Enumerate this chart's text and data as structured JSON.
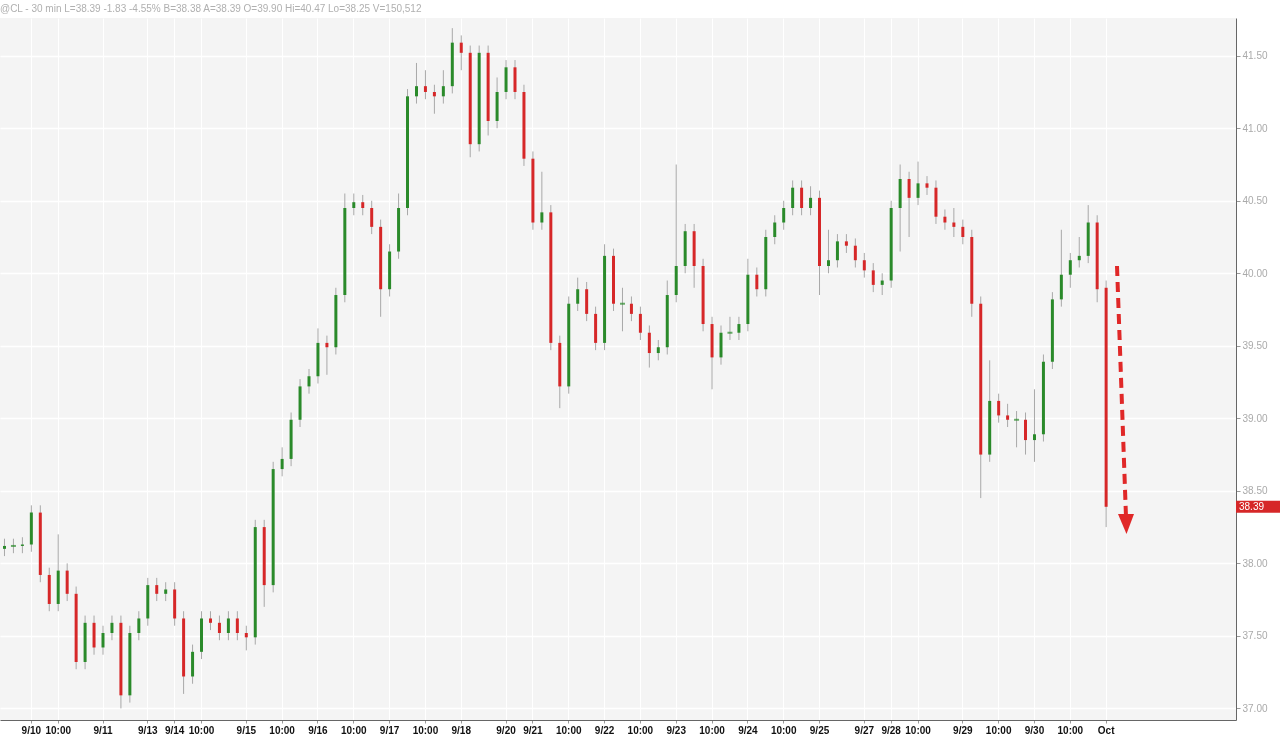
{
  "chart_data": {
    "type": "candlestick",
    "title": "@CL - 30 min  L=38.39  -1.83  -4.55%  B=38.38  A=38.39  O=39.90  Hi=40.47  Lo=38.25  V=150,512",
    "categories": [
      null,
      null,
      null,
      "9/10",
      null,
      null,
      "10:00",
      null,
      null,
      null,
      null,
      "9/11",
      null,
      null,
      null,
      null,
      "9/13",
      null,
      null,
      "9/14",
      null,
      null,
      "10:00",
      null,
      null,
      null,
      null,
      "9/15",
      null,
      null,
      null,
      "10:00",
      null,
      null,
      null,
      "9/16",
      null,
      null,
      null,
      "10:00",
      null,
      null,
      null,
      "9/17",
      null,
      null,
      null,
      "10:00",
      null,
      null,
      null,
      "9/18",
      null,
      null,
      null,
      null,
      "9/20",
      null,
      null,
      "9/21",
      null,
      null,
      null,
      "10:00",
      null,
      null,
      null,
      "9/22",
      null,
      null,
      null,
      "10:00",
      null,
      null,
      null,
      "9/23",
      null,
      null,
      null,
      "10:00",
      null,
      null,
      null,
      "9/24",
      null,
      null,
      null,
      "10:00",
      null,
      null,
      null,
      "9/25",
      null,
      null,
      null,
      null,
      "9/27",
      null,
      null,
      "9/28",
      null,
      null,
      "10:00",
      null,
      null,
      null,
      null,
      "9/29",
      null,
      null,
      null,
      "10:00",
      null,
      null,
      null,
      "9/30",
      null,
      null,
      null,
      "10:00",
      null,
      null,
      null,
      "Oct",
      null,
      null,
      null,
      null,
      null,
      null,
      null,
      null,
      null,
      null,
      null,
      null,
      null,
      null
    ],
    "ohlc": [
      [
        38.1,
        38.17,
        38.05,
        38.12
      ],
      [
        38.12,
        38.17,
        38.07,
        38.12
      ],
      [
        38.12,
        38.18,
        38.07,
        38.13
      ],
      [
        38.13,
        38.4,
        38.08,
        38.35
      ],
      [
        38.35,
        38.4,
        37.87,
        37.92
      ],
      [
        37.92,
        37.97,
        37.67,
        37.72
      ],
      [
        37.72,
        38.2,
        37.67,
        37.95
      ],
      [
        37.95,
        38.0,
        37.74,
        37.79
      ],
      [
        37.79,
        37.84,
        37.27,
        37.32
      ],
      [
        37.32,
        37.64,
        37.27,
        37.59
      ],
      [
        37.59,
        37.64,
        37.37,
        37.42
      ],
      [
        37.42,
        37.57,
        37.37,
        37.52
      ],
      [
        37.52,
        37.64,
        37.47,
        37.59
      ],
      [
        37.59,
        37.64,
        37.0,
        37.09
      ],
      [
        37.09,
        37.57,
        37.04,
        37.52
      ],
      [
        37.52,
        37.67,
        37.47,
        37.62
      ],
      [
        37.62,
        37.9,
        37.57,
        37.85
      ],
      [
        37.85,
        37.9,
        37.74,
        37.79
      ],
      [
        37.79,
        37.87,
        37.74,
        37.82
      ],
      [
        37.82,
        37.87,
        37.57,
        37.62
      ],
      [
        37.62,
        37.67,
        37.1,
        37.22
      ],
      [
        37.22,
        37.44,
        37.17,
        37.39
      ],
      [
        37.39,
        37.67,
        37.34,
        37.62
      ],
      [
        37.62,
        37.67,
        37.54,
        37.59
      ],
      [
        37.59,
        37.64,
        37.47,
        37.52
      ],
      [
        37.52,
        37.67,
        37.47,
        37.62
      ],
      [
        37.62,
        37.67,
        37.47,
        37.52
      ],
      [
        37.52,
        37.57,
        37.4,
        37.49
      ],
      [
        37.49,
        38.3,
        37.44,
        38.25
      ],
      [
        38.25,
        38.3,
        37.7,
        37.85
      ],
      [
        37.85,
        38.7,
        37.8,
        38.65
      ],
      [
        38.65,
        38.8,
        38.6,
        38.72
      ],
      [
        38.72,
        39.04,
        38.67,
        38.99
      ],
      [
        38.99,
        39.27,
        38.94,
        39.22
      ],
      [
        39.22,
        39.34,
        39.17,
        39.29
      ],
      [
        39.29,
        39.62,
        39.24,
        39.52
      ],
      [
        39.52,
        39.57,
        39.3,
        39.49
      ],
      [
        39.49,
        39.9,
        39.44,
        39.85
      ],
      [
        39.85,
        40.55,
        39.8,
        40.45
      ],
      [
        40.45,
        40.55,
        40.4,
        40.49
      ],
      [
        40.49,
        40.54,
        40.4,
        40.45
      ],
      [
        40.45,
        40.5,
        40.27,
        40.32
      ],
      [
        40.32,
        40.37,
        39.7,
        39.89
      ],
      [
        39.89,
        40.2,
        39.84,
        40.15
      ],
      [
        40.15,
        40.55,
        40.1,
        40.45
      ],
      [
        40.45,
        41.27,
        40.4,
        41.22
      ],
      [
        41.22,
        41.45,
        41.17,
        41.29
      ],
      [
        41.29,
        41.4,
        41.2,
        41.25
      ],
      [
        41.25,
        41.3,
        41.1,
        41.22
      ],
      [
        41.22,
        41.4,
        41.17,
        41.29
      ],
      [
        41.29,
        41.69,
        41.24,
        41.59
      ],
      [
        41.59,
        41.64,
        41.4,
        41.52
      ],
      [
        41.52,
        41.57,
        40.8,
        40.89
      ],
      [
        40.89,
        41.57,
        40.84,
        41.52
      ],
      [
        41.52,
        41.57,
        40.95,
        41.05
      ],
      [
        41.05,
        41.35,
        41.0,
        41.25
      ],
      [
        41.25,
        41.47,
        41.2,
        41.42
      ],
      [
        41.42,
        41.47,
        41.2,
        41.25
      ],
      [
        41.25,
        41.3,
        40.74,
        40.79
      ],
      [
        40.79,
        40.84,
        40.3,
        40.35
      ],
      [
        40.35,
        40.7,
        40.3,
        40.42
      ],
      [
        40.42,
        40.47,
        39.47,
        39.52
      ],
      [
        39.52,
        39.57,
        39.07,
        39.22
      ],
      [
        39.22,
        39.84,
        39.17,
        39.79
      ],
      [
        39.79,
        39.97,
        39.74,
        39.89
      ],
      [
        39.89,
        39.94,
        39.67,
        39.72
      ],
      [
        39.72,
        39.77,
        39.47,
        39.52
      ],
      [
        39.52,
        40.2,
        39.47,
        40.12
      ],
      [
        40.12,
        40.17,
        39.74,
        39.79
      ],
      [
        39.79,
        39.9,
        39.6,
        39.79
      ],
      [
        39.79,
        39.84,
        39.67,
        39.72
      ],
      [
        39.72,
        39.77,
        39.54,
        39.59
      ],
      [
        39.59,
        39.64,
        39.35,
        39.45
      ],
      [
        39.45,
        39.54,
        39.4,
        39.49
      ],
      [
        39.49,
        39.95,
        39.44,
        39.85
      ],
      [
        39.85,
        40.75,
        39.8,
        40.05
      ],
      [
        40.05,
        40.34,
        40.0,
        40.29
      ],
      [
        40.29,
        40.34,
        39.9,
        40.05
      ],
      [
        40.05,
        40.1,
        39.6,
        39.65
      ],
      [
        39.65,
        39.7,
        39.2,
        39.42
      ],
      [
        39.42,
        39.64,
        39.37,
        39.59
      ],
      [
        39.59,
        39.7,
        39.54,
        39.59
      ],
      [
        39.59,
        39.7,
        39.54,
        39.65
      ],
      [
        39.65,
        40.1,
        39.6,
        39.99
      ],
      [
        39.99,
        40.04,
        39.84,
        39.89
      ],
      [
        39.89,
        40.3,
        39.84,
        40.25
      ],
      [
        40.25,
        40.4,
        40.2,
        40.35
      ],
      [
        40.35,
        40.5,
        40.3,
        40.45
      ],
      [
        40.45,
        40.64,
        40.4,
        40.59
      ],
      [
        40.59,
        40.64,
        40.4,
        40.45
      ],
      [
        40.45,
        40.6,
        40.4,
        40.52
      ],
      [
        40.52,
        40.57,
        39.85,
        40.05
      ],
      [
        40.05,
        40.3,
        40.0,
        40.09
      ],
      [
        40.09,
        40.27,
        40.04,
        40.22
      ],
      [
        40.22,
        40.27,
        40.14,
        40.19
      ],
      [
        40.19,
        40.24,
        40.04,
        40.09
      ],
      [
        40.09,
        40.14,
        39.97,
        40.02
      ],
      [
        40.02,
        40.07,
        39.87,
        39.92
      ],
      [
        39.92,
        40.0,
        39.85,
        39.95
      ],
      [
        39.95,
        40.5,
        39.9,
        40.45
      ],
      [
        40.45,
        40.75,
        40.15,
        40.65
      ],
      [
        40.65,
        40.7,
        40.25,
        40.52
      ],
      [
        40.52,
        40.77,
        40.47,
        40.62
      ],
      [
        40.62,
        40.67,
        40.54,
        40.59
      ],
      [
        40.59,
        40.64,
        40.34,
        40.39
      ],
      [
        40.39,
        40.44,
        40.3,
        40.35
      ],
      [
        40.35,
        40.45,
        40.25,
        40.32
      ],
      [
        40.32,
        40.37,
        40.2,
        40.25
      ],
      [
        40.25,
        40.3,
        39.7,
        39.79
      ],
      [
        39.79,
        39.84,
        38.45,
        38.75
      ],
      [
        38.75,
        39.4,
        38.7,
        39.12
      ],
      [
        39.12,
        39.17,
        38.97,
        39.02
      ],
      [
        39.02,
        39.1,
        38.94,
        38.99
      ],
      [
        38.99,
        39.05,
        38.8,
        38.99
      ],
      [
        38.99,
        39.04,
        38.75,
        38.85
      ],
      [
        38.85,
        39.2,
        38.7,
        38.89
      ],
      [
        38.89,
        39.44,
        38.84,
        39.39
      ],
      [
        39.39,
        39.87,
        39.34,
        39.82
      ],
      [
        39.82,
        40.3,
        39.77,
        39.99
      ],
      [
        39.99,
        40.14,
        39.9,
        40.09
      ],
      [
        40.09,
        40.25,
        40.04,
        40.12
      ],
      [
        40.12,
        40.47,
        40.07,
        40.35
      ],
      [
        40.35,
        40.4,
        39.8,
        39.89
      ],
      [
        39.9,
        39.95,
        38.25,
        38.39
      ],
      null,
      null,
      null,
      null,
      null,
      null,
      null,
      null,
      null,
      null,
      null,
      null,
      null,
      null
    ],
    "ylim": [
      36.92,
      41.76
    ],
    "yticks": [
      {
        "value": 37,
        "label": "37.00"
      },
      {
        "value": 37.5,
        "label": "37.50"
      },
      {
        "value": 38,
        "label": "38.00"
      },
      {
        "value": 38.5,
        "label": "38.50"
      },
      {
        "value": 39,
        "label": "39.00"
      },
      {
        "value": 39.5,
        "label": "39.50"
      },
      {
        "value": 40,
        "label": "40.00"
      },
      {
        "value": 40.5,
        "label": "40.50"
      },
      {
        "value": 41,
        "label": "41.00"
      },
      {
        "value": 41.5,
        "label": "41.50"
      }
    ],
    "grid": true,
    "annotations": [
      "38.39"
    ]
  }
}
